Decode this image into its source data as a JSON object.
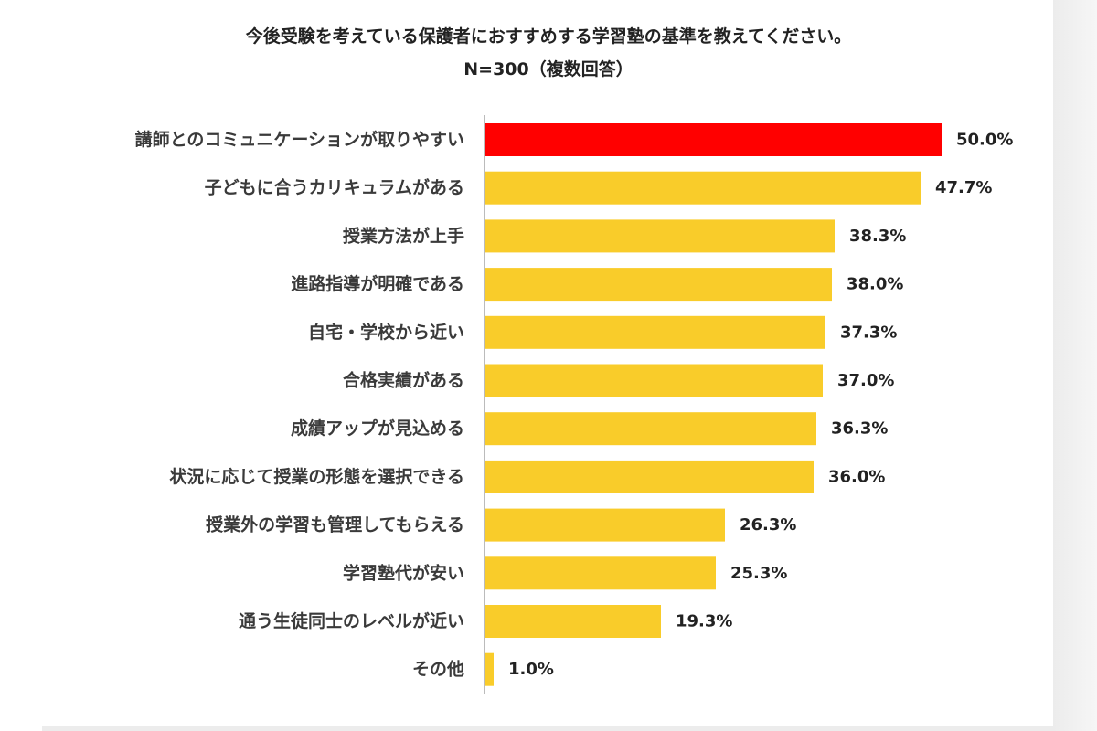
{
  "chart_data": {
    "type": "bar",
    "orientation": "horizontal",
    "title": "今後受験を考えている保護者におすすめする学習塾の基準を教えてください。",
    "subtitle": "N=300（複数回答）",
    "categories": [
      "講師とのコミュニケーションが取りやすい",
      "子どもに合うカリキュラムがある",
      "授業方法が上手",
      "進路指導が明確である",
      "自宅・学校から近い",
      "合格実績がある",
      "成績アップが見込める",
      "状況に応じて授業の形態を選択できる",
      "授業外の学習も管理してもらえる",
      "学習塾代が安い",
      "通う生徒同士のレベルが近い",
      "その他"
    ],
    "values": [
      50.0,
      47.7,
      38.3,
      38.0,
      37.3,
      37.0,
      36.3,
      36.0,
      26.3,
      25.3,
      19.3,
      1.0
    ],
    "value_labels": [
      "50.0%",
      "47.7%",
      "38.3%",
      "38.0%",
      "37.3%",
      "37.0%",
      "36.3%",
      "36.0%",
      "26.3%",
      "25.3%",
      "19.3%",
      "1.0%"
    ],
    "highlight_index": 0,
    "colors": {
      "highlight": "#ff0000",
      "default": "#f9cc2a",
      "axis": "#bbbbbb"
    },
    "xlim": [
      0,
      50
    ],
    "grid": false,
    "legend": "none"
  }
}
